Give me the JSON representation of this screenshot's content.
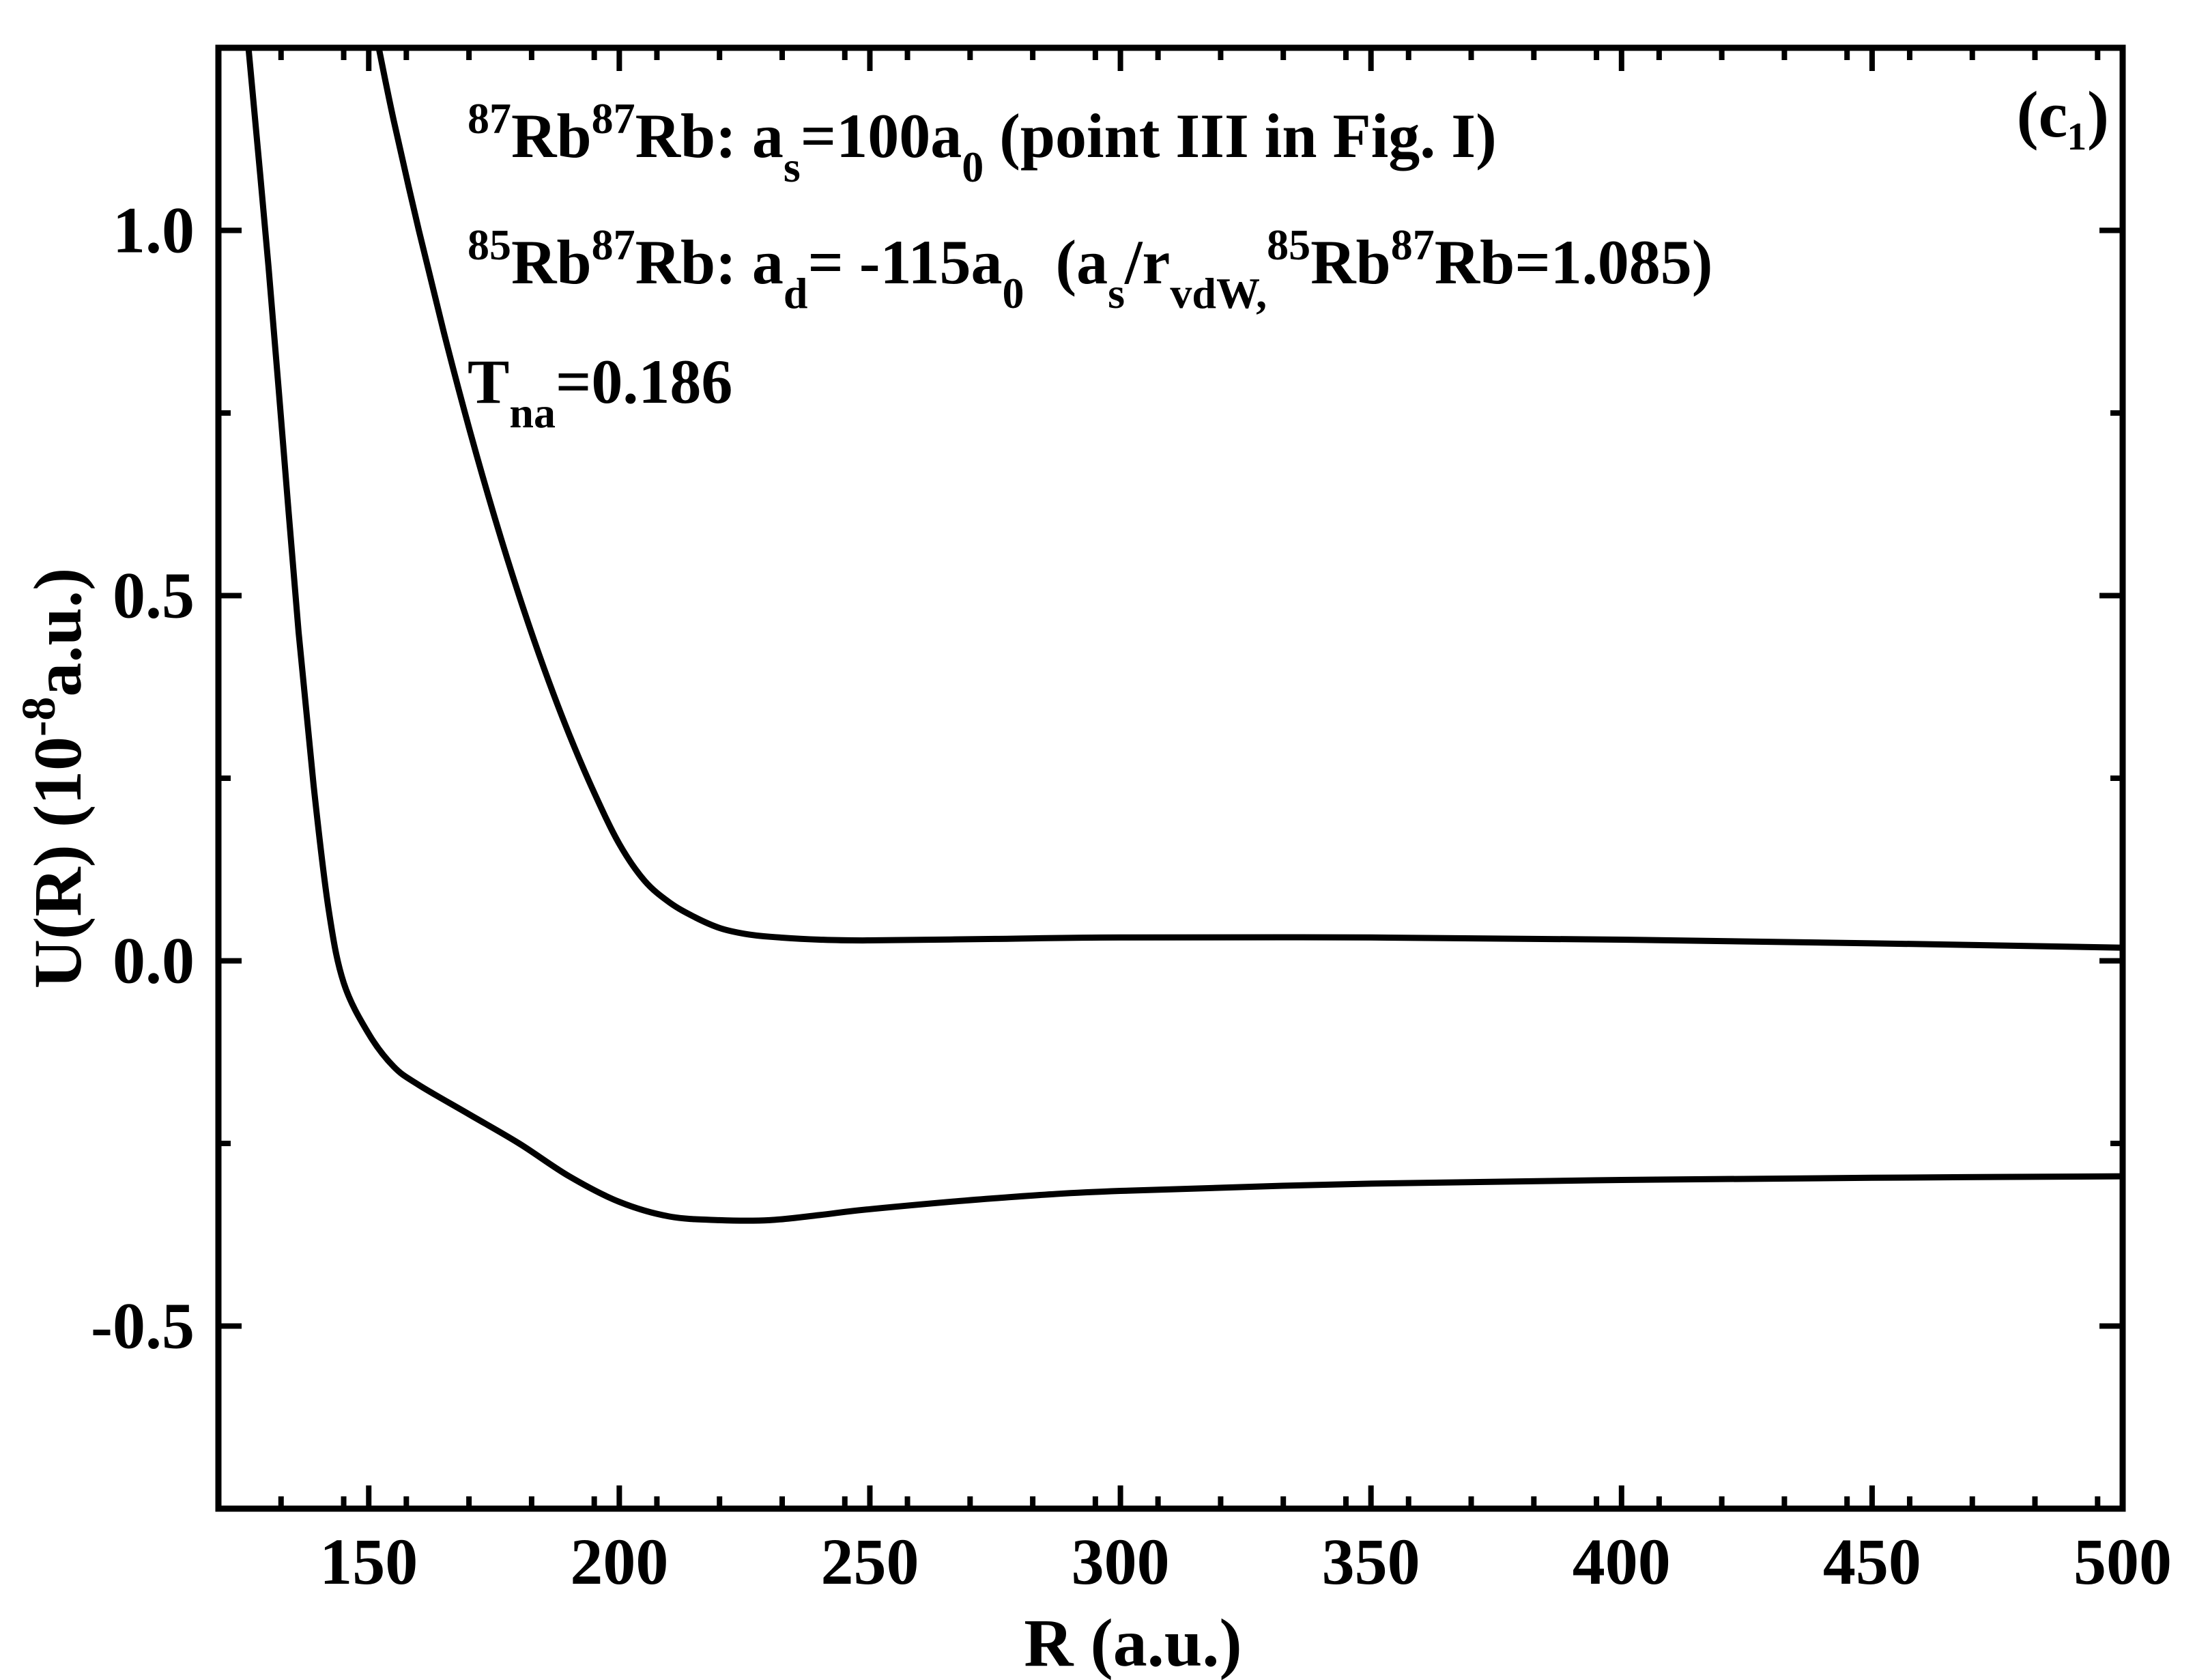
{
  "chart_data": {
    "type": "line",
    "title": "",
    "xlabel": "R (a.u.)",
    "ylabel": {
      "prefix": "U(R) (10",
      "exponent": "-8",
      "suffix": "a.u.)"
    },
    "xlim": [
      120,
      500
    ],
    "ylim": [
      -0.75,
      1.25
    ],
    "x_ticks": [
      150,
      200,
      250,
      300,
      350,
      400,
      450,
      500
    ],
    "x_tick_labels": [
      "150",
      "200",
      "250",
      "300",
      "350",
      "400",
      "450",
      "500"
    ],
    "x_minor_step": 12.5,
    "y_ticks": [
      -0.5,
      0.0,
      0.5,
      1.0
    ],
    "y_tick_labels": [
      "-0.5",
      "0.0",
      "0.5",
      "1.0"
    ],
    "y_minor_step": 0.25,
    "grid": false,
    "line_color": "#000000",
    "panel_label": "(c₁)",
    "annotations": [
      "⁸⁷Rb⁸⁷Rb: aₛ=100a₀ (point III in Fig. I)",
      "⁸⁵Rb⁸⁷Rb: a_d= -115a₀  (aₛ/r_vdW,⁸⁵Rb⁸⁷Rb=1.085)",
      "T_na=0.186"
    ],
    "series": [
      {
        "x": [
          152,
          155,
          160,
          165,
          170,
          175,
          180,
          185,
          190,
          195,
          200,
          205,
          210,
          215,
          220,
          225,
          230,
          240,
          250,
          275,
          300,
          350,
          400,
          450,
          500
        ],
        "values": [
          1.25,
          1.15,
          1.0,
          0.86,
          0.73,
          0.61,
          0.5,
          0.4,
          0.31,
          0.23,
          0.16,
          0.11,
          0.08,
          0.06,
          0.045,
          0.037,
          0.033,
          0.029,
          0.028,
          0.03,
          0.032,
          0.032,
          0.029,
          0.024,
          0.018
        ]
      },
      {
        "x": [
          126,
          130,
          133,
          136,
          139,
          142,
          145,
          150,
          155,
          160,
          170,
          180,
          190,
          200,
          210,
          220,
          230,
          240,
          250,
          275,
          300,
          350,
          400,
          450,
          500
        ],
        "values": [
          1.25,
          0.95,
          0.7,
          0.45,
          0.24,
          0.07,
          -0.03,
          -0.1,
          -0.145,
          -0.17,
          -0.21,
          -0.25,
          -0.295,
          -0.33,
          -0.35,
          -0.355,
          -0.355,
          -0.348,
          -0.34,
          -0.325,
          -0.315,
          -0.305,
          -0.3,
          -0.297,
          -0.295
        ]
      }
    ]
  }
}
